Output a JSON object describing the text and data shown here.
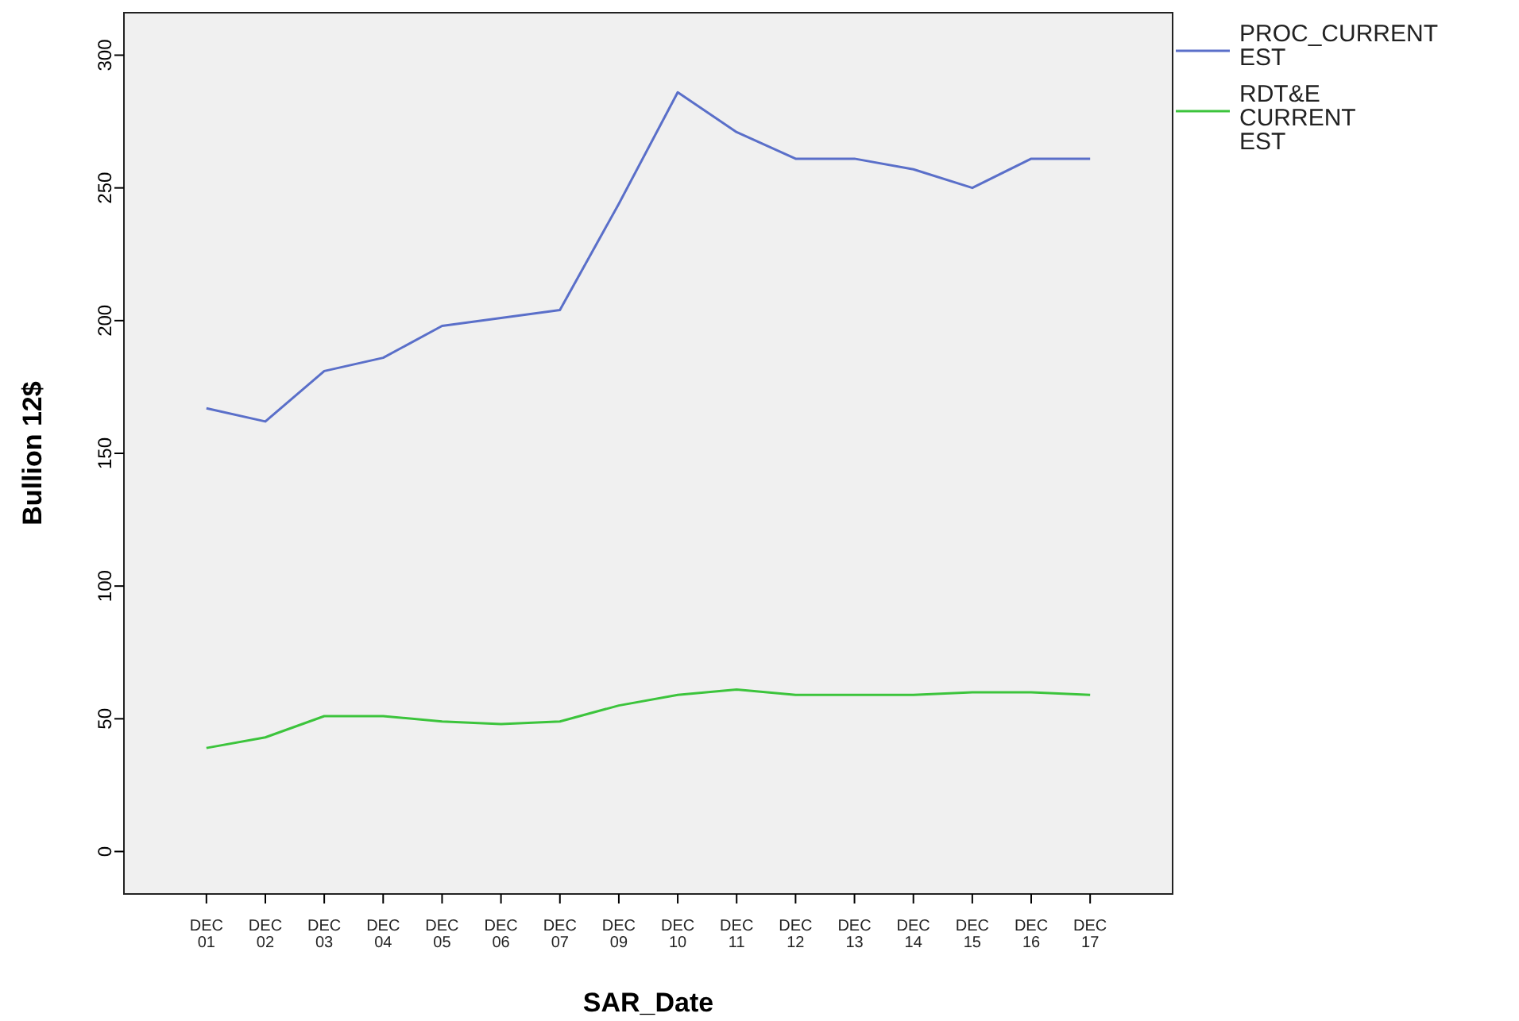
{
  "chart_data": {
    "type": "line",
    "xlabel": "SAR_Date",
    "ylabel": "Bullion 12$",
    "categories": [
      "DEC 01",
      "DEC 02",
      "DEC 03",
      "DEC 04",
      "DEC 05",
      "DEC 06",
      "DEC 07",
      "DEC 09",
      "DEC 10",
      "DEC 11",
      "DEC 12",
      "DEC 13",
      "DEC 14",
      "DEC 15",
      "DEC 16",
      "DEC 17"
    ],
    "series": [
      {
        "name": "PROC_CURRENT EST",
        "color": "#5a6fc9",
        "values": [
          167,
          162,
          181,
          186,
          198,
          201,
          204,
          244,
          286,
          271,
          261,
          261,
          257,
          250,
          261,
          261
        ]
      },
      {
        "name": "RDT&E CURRENT EST",
        "color": "#3cc43c",
        "values": [
          39,
          43,
          51,
          51,
          49,
          48,
          49,
          55,
          59,
          61,
          59,
          59,
          59,
          60,
          60,
          59
        ]
      }
    ],
    "ylim": [
      -16,
      316
    ],
    "yticks": [
      0,
      50,
      100,
      150,
      200,
      250,
      300
    ],
    "grid": false,
    "legend": "right",
    "marker": "none",
    "line_style": "solid"
  }
}
